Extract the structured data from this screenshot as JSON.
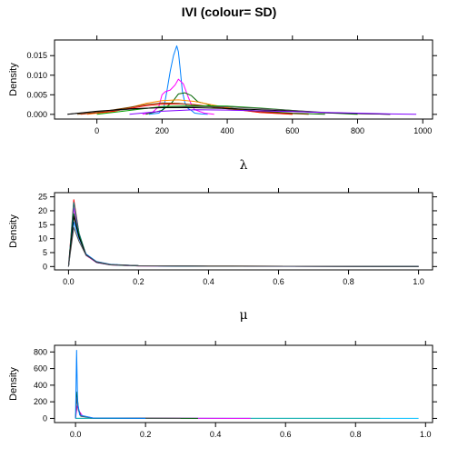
{
  "title": "IVI (colour= SD)",
  "chart_data": [
    {
      "type": "line",
      "xlabel": "λ",
      "ylabel": "Density",
      "xlim": [
        -130,
        1030
      ],
      "ylim": [
        -0.0012,
        0.019
      ],
      "xticks": [
        0,
        200,
        400,
        600,
        800,
        1000
      ],
      "xtick_labels": [
        "0",
        "200",
        "400",
        "600",
        "800",
        "1000"
      ],
      "yticks": [
        0,
        0.005,
        0.01,
        0.015
      ],
      "ytick_labels": [
        "0.000",
        "0.005",
        "0.010",
        "0.015"
      ],
      "series": [
        {
          "color": "#0080ff",
          "x": [
            160,
            190,
            205,
            215,
            225,
            235,
            245,
            250,
            255,
            262,
            270,
            280,
            290,
            300,
            320,
            340
          ],
          "y": [
            0,
            0.0003,
            0.0015,
            0.006,
            0.011,
            0.015,
            0.0175,
            0.016,
            0.012,
            0.006,
            0.003,
            0.0015,
            0.001,
            0.0003,
            0.0001,
            0
          ]
        },
        {
          "color": "#ff00ff",
          "x": [
            140,
            170,
            190,
            200,
            210,
            225,
            240,
            250,
            265,
            280,
            290,
            300,
            330,
            360
          ],
          "y": [
            0,
            0.0005,
            0.002,
            0.005,
            0.0058,
            0.0062,
            0.0075,
            0.009,
            0.0078,
            0.0045,
            0.0025,
            0.0012,
            0.0003,
            0
          ]
        },
        {
          "color": "#006400",
          "x": [
            150,
            200,
            230,
            250,
            270,
            290,
            310,
            330,
            350,
            400,
            450,
            500,
            600,
            700
          ],
          "y": [
            0,
            0.001,
            0.003,
            0.0052,
            0.0055,
            0.0048,
            0.0032,
            0.0028,
            0.0022,
            0.0017,
            0.0012,
            0.0008,
            0.0003,
            0
          ]
        },
        {
          "color": "#ff8c00",
          "x": [
            -30,
            50,
            100,
            150,
            200,
            250,
            300,
            350,
            400,
            450,
            500,
            600
          ],
          "y": [
            0,
            0.0007,
            0.0017,
            0.0028,
            0.0035,
            0.0037,
            0.0033,
            0.0025,
            0.0017,
            0.001,
            0.0005,
            0
          ]
        },
        {
          "color": "#ff0000",
          "x": [
            -50,
            50,
            100,
            150,
            200,
            250,
            300,
            350,
            400,
            450,
            500,
            600
          ],
          "y": [
            0,
            0.0008,
            0.0015,
            0.0022,
            0.0026,
            0.0027,
            0.0025,
            0.002,
            0.0015,
            0.001,
            0.0005,
            0
          ]
        },
        {
          "color": "#7b3f00",
          "x": [
            -60,
            0,
            100,
            150,
            200,
            250,
            300,
            350,
            400,
            500,
            600,
            650
          ],
          "y": [
            0,
            0.0005,
            0.0018,
            0.0025,
            0.0029,
            0.0028,
            0.0024,
            0.0019,
            0.0014,
            0.0007,
            0.0002,
            0
          ]
        },
        {
          "color": "#00a000",
          "x": [
            0,
            100,
            200,
            300,
            400,
            500,
            600,
            700,
            800
          ],
          "y": [
            0,
            0.001,
            0.002,
            0.0022,
            0.0021,
            0.0016,
            0.001,
            0.0004,
            0
          ]
        },
        {
          "color": "#505050",
          "x": [
            -90,
            0,
            100,
            200,
            300,
            400,
            500,
            600,
            700,
            800,
            900
          ],
          "y": [
            0,
            0.0007,
            0.0013,
            0.0018,
            0.002,
            0.0019,
            0.0015,
            0.001,
            0.0005,
            0.0002,
            0
          ]
        },
        {
          "color": "#000000",
          "x": [
            -90,
            0,
            100,
            200,
            300,
            400,
            500,
            600,
            700,
            800,
            900
          ],
          "y": [
            0,
            0.0008,
            0.0014,
            0.0017,
            0.0017,
            0.0015,
            0.0012,
            0.0008,
            0.0004,
            0.0002,
            0
          ]
        },
        {
          "color": "#8000ff",
          "x": [
            100,
            200,
            300,
            400,
            500,
            600,
            700,
            800,
            900,
            980
          ],
          "y": [
            0,
            0.0008,
            0.0012,
            0.0011,
            0.0009,
            0.0007,
            0.0005,
            0.0003,
            0.0001,
            0
          ]
        }
      ]
    },
    {
      "type": "line",
      "xlabel": "μ",
      "ylabel": "Density",
      "xlim": [
        -0.04,
        1.04
      ],
      "ylim": [
        -1.2,
        26.5
      ],
      "xticks": [
        0,
        0.2,
        0.4,
        0.6,
        0.8,
        1.0
      ],
      "xtick_labels": [
        "0.0",
        "0.2",
        "0.4",
        "0.6",
        "0.8",
        "1.0"
      ],
      "yticks": [
        0,
        5,
        10,
        15,
        20,
        25
      ],
      "ytick_labels": [
        "0",
        "5",
        "10",
        "15",
        "20",
        "25"
      ],
      "series": [
        {
          "color": "#ff0000",
          "x": [
            0,
            0.015,
            0.03,
            0.05,
            0.08,
            0.12,
            0.2,
            0.4,
            1.0
          ],
          "y": [
            0,
            24,
            12,
            4,
            1.5,
            0.6,
            0.25,
            0.12,
            0.05
          ]
        },
        {
          "color": "#ff00ff",
          "x": [
            0,
            0.015,
            0.03,
            0.05,
            0.08,
            0.12,
            0.2,
            0.4,
            1.0
          ],
          "y": [
            0,
            21,
            11,
            4,
            1.4,
            0.6,
            0.25,
            0.1,
            0.05
          ]
        },
        {
          "color": "#008080",
          "x": [
            0,
            0.015,
            0.03,
            0.05,
            0.08,
            0.12,
            0.2,
            0.4,
            1.0
          ],
          "y": [
            0,
            23,
            12,
            4.2,
            1.5,
            0.6,
            0.25,
            0.1,
            0.04
          ]
        },
        {
          "color": "#006400",
          "x": [
            0,
            0.015,
            0.03,
            0.05,
            0.08,
            0.12,
            0.2,
            0.4,
            1.0
          ],
          "y": [
            0,
            19,
            11,
            4.3,
            1.6,
            0.7,
            0.3,
            0.12,
            0.04
          ]
        },
        {
          "color": "#0080ff",
          "x": [
            0,
            0.015,
            0.03,
            0.05,
            0.08,
            0.12,
            0.2,
            0.4,
            1.0
          ],
          "y": [
            0,
            16,
            10,
            4.5,
            1.8,
            0.8,
            0.3,
            0.1,
            0.03
          ]
        },
        {
          "color": "#000000",
          "x": [
            0,
            0.015,
            0.03,
            0.05,
            0.08,
            0.12,
            0.2,
            0.4,
            1.0
          ],
          "y": [
            0,
            18,
            10.5,
            4.2,
            1.6,
            0.7,
            0.3,
            0.12,
            0.05
          ]
        },
        {
          "color": "#505050",
          "x": [
            0,
            0.015,
            0.03,
            0.05,
            0.08,
            0.12,
            0.2,
            0.4,
            1.0
          ],
          "y": [
            0,
            14,
            9,
            4,
            1.7,
            0.7,
            0.3,
            0.12,
            0.05
          ]
        }
      ]
    },
    {
      "type": "line",
      "xlabel": "",
      "ylabel": "Density",
      "xlim": [
        -0.06,
        1.02
      ],
      "ylim": [
        -50,
        880
      ],
      "xticks": [
        0,
        0.2,
        0.4,
        0.6,
        0.8,
        1.0
      ],
      "xtick_labels": [
        "0.0",
        "0.2",
        "0.4",
        "0.6",
        "0.8",
        "1.0"
      ],
      "yticks": [
        0,
        200,
        400,
        600,
        800
      ],
      "ytick_labels": [
        "0",
        "200",
        "400",
        "600",
        "800"
      ],
      "series": [
        {
          "color": "#00bfff",
          "x": [
            0,
            0.9,
            0.98
          ],
          "y": [
            0,
            0.5,
            0
          ]
        },
        {
          "color": "#20b2aa",
          "x": [
            0,
            0.85,
            0.87
          ],
          "y": [
            0,
            0.5,
            0
          ]
        },
        {
          "color": "#ff00ff",
          "x": [
            0,
            0.005,
            0.01,
            0.02,
            0.05,
            0.5
          ],
          "y": [
            0,
            150,
            90,
            30,
            5,
            0
          ]
        },
        {
          "color": "#006400",
          "x": [
            0,
            0.004,
            0.008,
            0.015,
            0.05,
            0.35
          ],
          "y": [
            0,
            320,
            120,
            30,
            4,
            0
          ]
        },
        {
          "color": "#505050",
          "x": [
            0,
            0.004,
            0.008,
            0.015,
            0.05,
            0.3
          ],
          "y": [
            0,
            250,
            100,
            25,
            4,
            0
          ]
        },
        {
          "color": "#0080ff",
          "x": [
            0,
            0.003,
            0.006,
            0.012,
            0.05,
            0.2
          ],
          "y": [
            0,
            820,
            200,
            40,
            5,
            0
          ]
        }
      ]
    }
  ]
}
